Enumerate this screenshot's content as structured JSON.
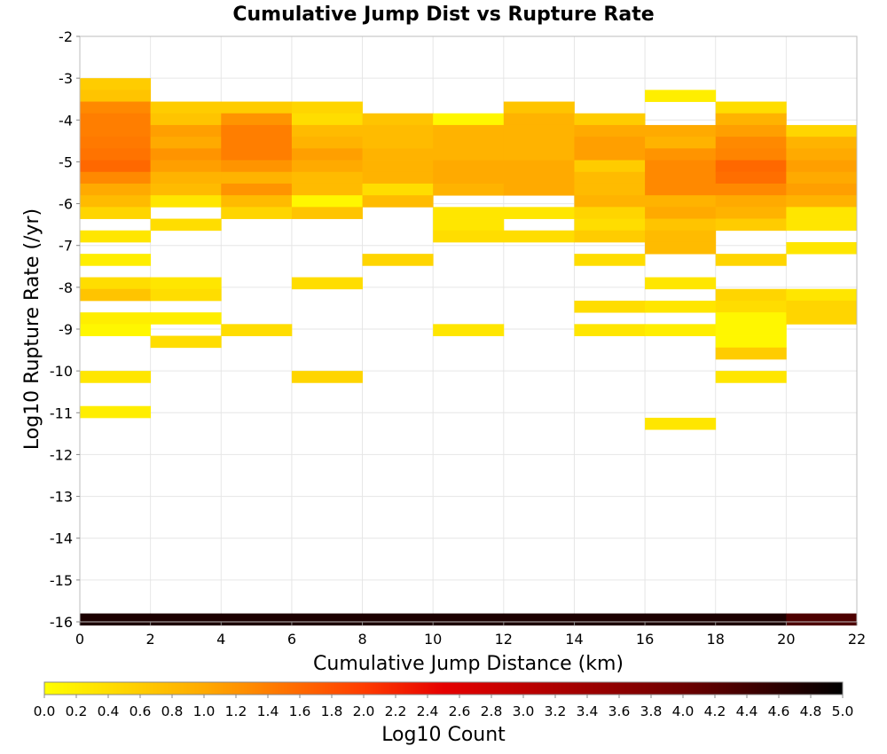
{
  "chart_data": {
    "type": "heatmap",
    "title": "Cumulative Jump Dist vs Rupture Rate",
    "xlabel": "Cumulative Jump Distance (km)",
    "ylabel": "Log10 Rupture Rate (/yr)",
    "xlim": [
      0,
      22
    ],
    "ylim": [
      -16,
      -2
    ],
    "xticks": [
      "0",
      "2",
      "4",
      "6",
      "8",
      "10",
      "12",
      "14",
      "16",
      "18",
      "20",
      "22"
    ],
    "yticks": [
      "-2",
      "-3",
      "-4",
      "-5",
      "-6",
      "-7",
      "-8",
      "-9",
      "-10",
      "-11",
      "-12",
      "-13",
      "-14",
      "-15",
      "-16"
    ],
    "grid": true,
    "x_bin_width": 2,
    "y_bin_height": 0.28,
    "colorbar": {
      "label": "Log10 Count",
      "range": [
        0.0,
        5.0
      ],
      "ticks": [
        "0.0",
        "0.2",
        "0.4",
        "0.6",
        "0.8",
        "1.0",
        "1.2",
        "1.4",
        "1.6",
        "1.8",
        "2.0",
        "2.2",
        "2.4",
        "2.6",
        "2.8",
        "3.0",
        "3.2",
        "3.4",
        "3.6",
        "3.8",
        "4.0",
        "4.2",
        "4.4",
        "4.6",
        "4.8",
        "5.0"
      ],
      "colormap": "yellow-orange-red-black",
      "placement": "bottom"
    },
    "columns": [
      {
        "x": 0,
        "cells": [
          [
            -3.14,
            0.6
          ],
          [
            -3.42,
            0.7
          ],
          [
            -3.7,
            1.3
          ],
          [
            -3.98,
            1.4
          ],
          [
            -4.26,
            1.4
          ],
          [
            -4.54,
            1.45
          ],
          [
            -4.82,
            1.5
          ],
          [
            -5.1,
            1.6
          ],
          [
            -5.38,
            1.3
          ],
          [
            -5.66,
            1.0
          ],
          [
            -5.94,
            0.8
          ],
          [
            -6.22,
            0.5
          ],
          [
            -6.78,
            0.3
          ],
          [
            -7.34,
            0.2
          ],
          [
            -7.9,
            0.4
          ],
          [
            -8.18,
            0.7
          ],
          [
            -8.74,
            0.2
          ],
          [
            -9.02,
            0.1
          ],
          [
            -10.14,
            0.3
          ],
          [
            -10.98,
            0.2
          ],
          [
            -15.94,
            4.75
          ]
        ]
      },
      {
        "x": 2,
        "cells": [
          [
            -3.7,
            0.6
          ],
          [
            -3.98,
            0.7
          ],
          [
            -4.26,
            1.1
          ],
          [
            -4.54,
            1.0
          ],
          [
            -4.82,
            1.2
          ],
          [
            -5.1,
            1.1
          ],
          [
            -5.38,
            0.9
          ],
          [
            -5.66,
            0.8
          ],
          [
            -5.94,
            0.3
          ],
          [
            -6.5,
            0.4
          ],
          [
            -7.9,
            0.3
          ],
          [
            -8.18,
            0.4
          ],
          [
            -8.74,
            0.2
          ],
          [
            -9.3,
            0.4
          ],
          [
            -15.94,
            4.75
          ]
        ]
      },
      {
        "x": 4,
        "cells": [
          [
            -3.7,
            0.6
          ],
          [
            -3.98,
            1.2
          ],
          [
            -4.26,
            1.4
          ],
          [
            -4.54,
            1.4
          ],
          [
            -4.82,
            1.4
          ],
          [
            -5.1,
            1.2
          ],
          [
            -5.38,
            0.9
          ],
          [
            -5.66,
            1.2
          ],
          [
            -5.94,
            0.8
          ],
          [
            -6.22,
            0.5
          ],
          [
            -9.02,
            0.4
          ],
          [
            -15.94,
            4.75
          ]
        ]
      },
      {
        "x": 6,
        "cells": [
          [
            -3.7,
            0.5
          ],
          [
            -3.98,
            0.4
          ],
          [
            -4.26,
            0.8
          ],
          [
            -4.54,
            0.9
          ],
          [
            -4.82,
            1.1
          ],
          [
            -5.1,
            1.0
          ],
          [
            -5.38,
            0.8
          ],
          [
            -5.66,
            0.8
          ],
          [
            -5.94,
            0.1
          ],
          [
            -6.22,
            0.7
          ],
          [
            -7.9,
            0.4
          ],
          [
            -10.14,
            0.5
          ],
          [
            -15.94,
            4.75
          ]
        ]
      },
      {
        "x": 8,
        "cells": [
          [
            -3.98,
            0.7
          ],
          [
            -4.26,
            0.8
          ],
          [
            -4.54,
            0.8
          ],
          [
            -4.82,
            0.9
          ],
          [
            -5.1,
            0.9
          ],
          [
            -5.38,
            0.9
          ],
          [
            -5.66,
            0.4
          ],
          [
            -5.94,
            0.8
          ],
          [
            -7.34,
            0.5
          ],
          [
            -15.94,
            4.75
          ]
        ]
      },
      {
        "x": 10,
        "cells": [
          [
            -3.98,
            0.1
          ],
          [
            -4.26,
            0.9
          ],
          [
            -4.54,
            0.9
          ],
          [
            -4.82,
            0.9
          ],
          [
            -5.1,
            1.0
          ],
          [
            -5.38,
            1.0
          ],
          [
            -5.66,
            0.9
          ],
          [
            -6.22,
            0.3
          ],
          [
            -6.5,
            0.3
          ],
          [
            -6.78,
            0.4
          ],
          [
            -9.02,
            0.3
          ],
          [
            -15.94,
            4.75
          ]
        ]
      },
      {
        "x": 12,
        "cells": [
          [
            -3.7,
            0.7
          ],
          [
            -3.98,
            0.9
          ],
          [
            -4.26,
            0.9
          ],
          [
            -4.54,
            0.9
          ],
          [
            -4.82,
            0.9
          ],
          [
            -5.1,
            1.0
          ],
          [
            -5.38,
            1.0
          ],
          [
            -5.66,
            1.0
          ],
          [
            -6.22,
            0.3
          ],
          [
            -6.78,
            0.4
          ],
          [
            -15.94,
            4.75
          ]
        ]
      },
      {
        "x": 14,
        "cells": [
          [
            -3.98,
            0.6
          ],
          [
            -4.26,
            1.0
          ],
          [
            -4.54,
            1.1
          ],
          [
            -4.82,
            1.1
          ],
          [
            -5.1,
            0.6
          ],
          [
            -5.38,
            0.8
          ],
          [
            -5.66,
            0.8
          ],
          [
            -5.94,
            0.9
          ],
          [
            -6.22,
            0.5
          ],
          [
            -6.5,
            0.4
          ],
          [
            -6.78,
            0.6
          ],
          [
            -7.34,
            0.4
          ],
          [
            -8.46,
            0.4
          ],
          [
            -9.02,
            0.3
          ],
          [
            -15.94,
            4.75
          ]
        ]
      },
      {
        "x": 16,
        "cells": [
          [
            -3.42,
            0.2
          ],
          [
            -4.26,
            1.0
          ],
          [
            -4.54,
            0.9
          ],
          [
            -4.82,
            1.2
          ],
          [
            -5.1,
            1.3
          ],
          [
            -5.38,
            1.3
          ],
          [
            -5.66,
            1.3
          ],
          [
            -5.94,
            0.9
          ],
          [
            -6.22,
            1.0
          ],
          [
            -6.5,
            0.7
          ],
          [
            -6.78,
            0.8
          ],
          [
            -7.06,
            0.8
          ],
          [
            -7.9,
            0.3
          ],
          [
            -8.46,
            0.3
          ],
          [
            -9.02,
            0.2
          ],
          [
            -11.26,
            0.3
          ],
          [
            -15.94,
            4.75
          ]
        ]
      },
      {
        "x": 18,
        "cells": [
          [
            -3.7,
            0.4
          ],
          [
            -3.98,
            0.9
          ],
          [
            -4.26,
            1.1
          ],
          [
            -4.54,
            1.3
          ],
          [
            -4.82,
            1.35
          ],
          [
            -5.1,
            1.6
          ],
          [
            -5.38,
            1.55
          ],
          [
            -5.66,
            1.3
          ],
          [
            -5.94,
            1.0
          ],
          [
            -6.22,
            0.9
          ],
          [
            -6.5,
            0.6
          ],
          [
            -7.34,
            0.5
          ],
          [
            -8.18,
            0.5
          ],
          [
            -8.46,
            0.4
          ],
          [
            -8.74,
            0.1
          ],
          [
            -9.02,
            0.1
          ],
          [
            -9.3,
            0.1
          ],
          [
            -9.58,
            0.6
          ],
          [
            -10.14,
            0.3
          ],
          [
            -15.94,
            4.75
          ]
        ]
      },
      {
        "x": 20,
        "cells": [
          [
            -4.26,
            0.5
          ],
          [
            -4.54,
            0.9
          ],
          [
            -4.82,
            1.0
          ],
          [
            -5.1,
            1.1
          ],
          [
            -5.38,
            1.0
          ],
          [
            -5.66,
            1.1
          ],
          [
            -5.94,
            0.9
          ],
          [
            -6.22,
            0.3
          ],
          [
            -6.5,
            0.3
          ],
          [
            -7.06,
            0.3
          ],
          [
            -8.18,
            0.3
          ],
          [
            -8.46,
            0.5
          ],
          [
            -8.74,
            0.5
          ],
          [
            -15.94,
            4.3
          ]
        ]
      }
    ]
  }
}
